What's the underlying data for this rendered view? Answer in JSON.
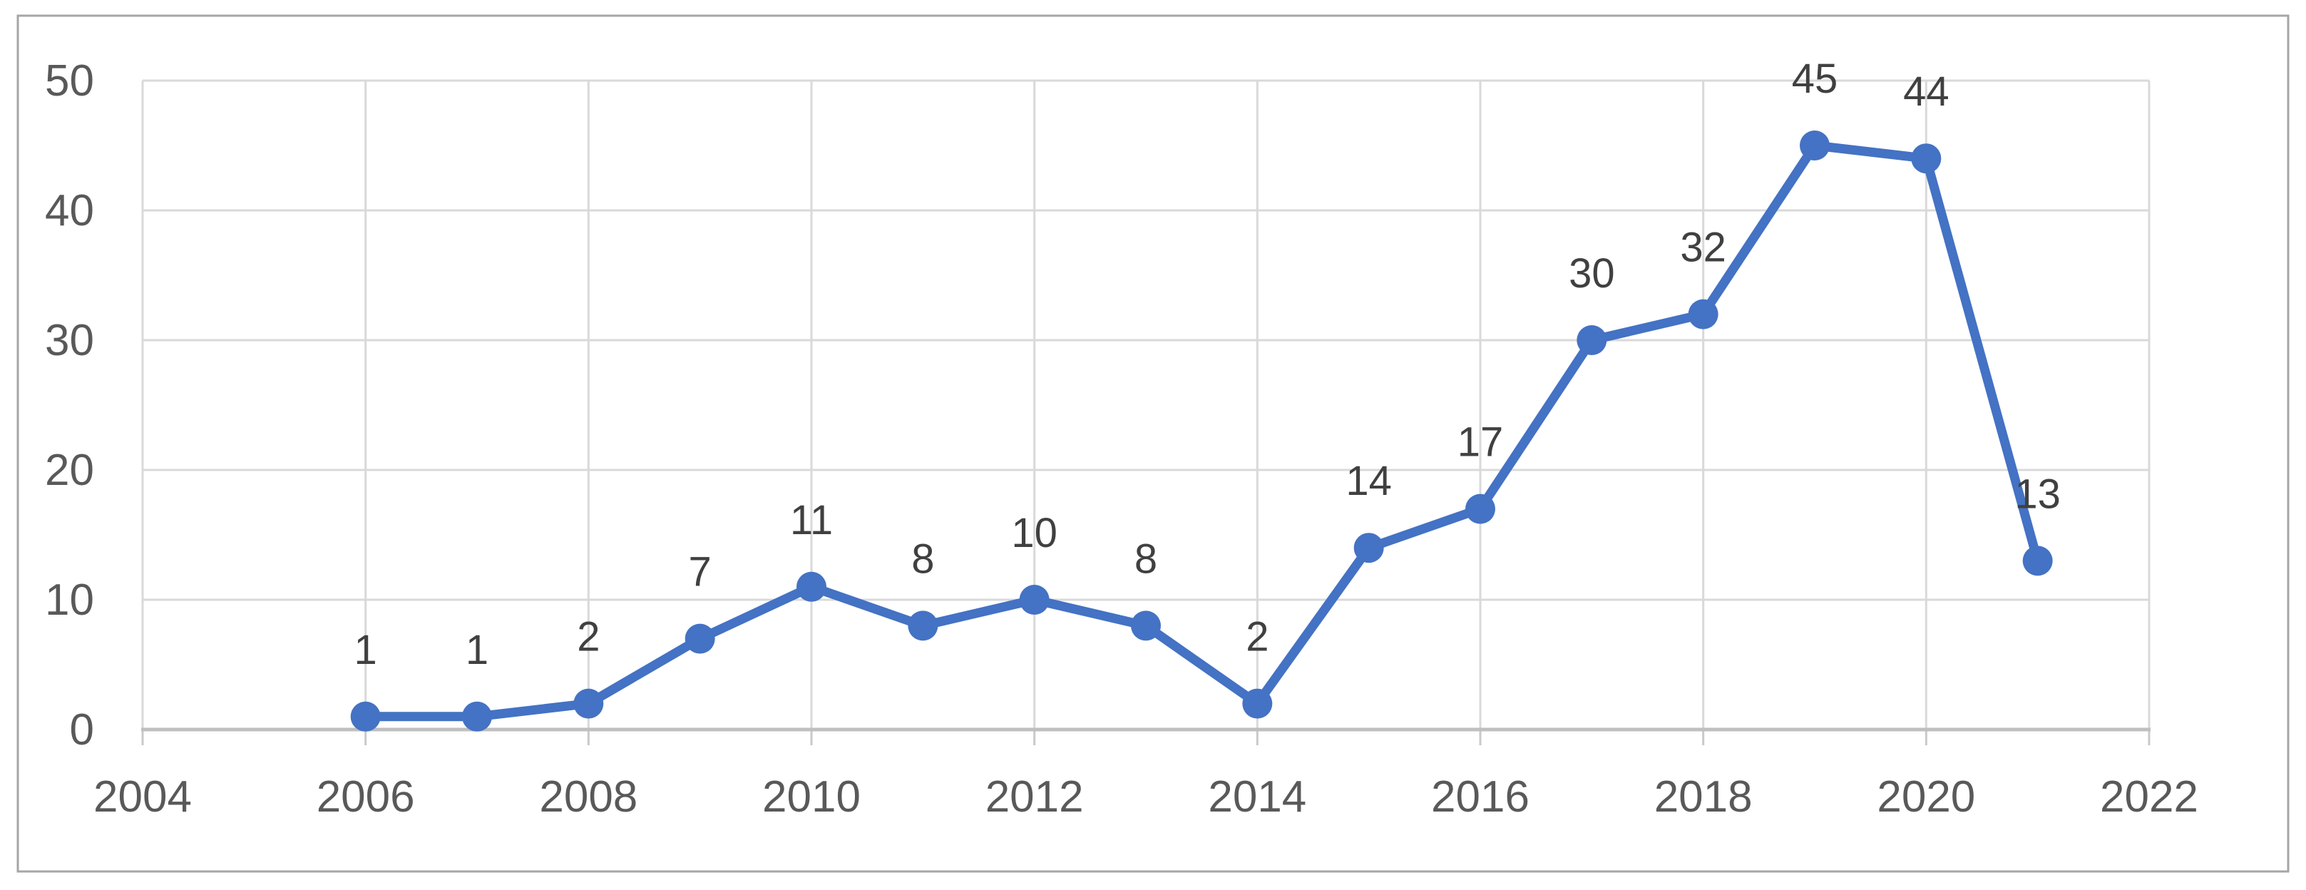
{
  "chart_data": {
    "type": "line",
    "title": "",
    "xlabel": "",
    "ylabel": "",
    "x": [
      2006,
      2007,
      2008,
      2009,
      2010,
      2011,
      2012,
      2013,
      2014,
      2015,
      2016,
      2017,
      2018,
      2019,
      2020,
      2021
    ],
    "values": [
      1,
      1,
      2,
      7,
      11,
      8,
      10,
      8,
      2,
      14,
      17,
      30,
      32,
      45,
      44,
      13
    ],
    "data_labels": [
      "1",
      "1",
      "2",
      "7",
      "11",
      "8",
      "10",
      "8",
      "2",
      "14",
      "17",
      "30",
      "32",
      "45",
      "44",
      "13"
    ],
    "xlim": [
      2004,
      2022
    ],
    "ylim": [
      0,
      50
    ],
    "x_ticks": [
      2004,
      2006,
      2008,
      2010,
      2012,
      2014,
      2016,
      2018,
      2020,
      2022
    ],
    "y_ticks": [
      0,
      10,
      20,
      30,
      40,
      50
    ],
    "grid": true,
    "legend": false,
    "colors": {
      "line": "#4472C4",
      "marker": "#4472C4",
      "data_label": "#404040",
      "axis_text": "#595959",
      "gridline": "#D9D9D9",
      "axis_line": "#BFBFBF",
      "tick_mark": "#C9C9C9",
      "chart_border": "#A6A6A6",
      "background": "#FFFFFF"
    }
  }
}
